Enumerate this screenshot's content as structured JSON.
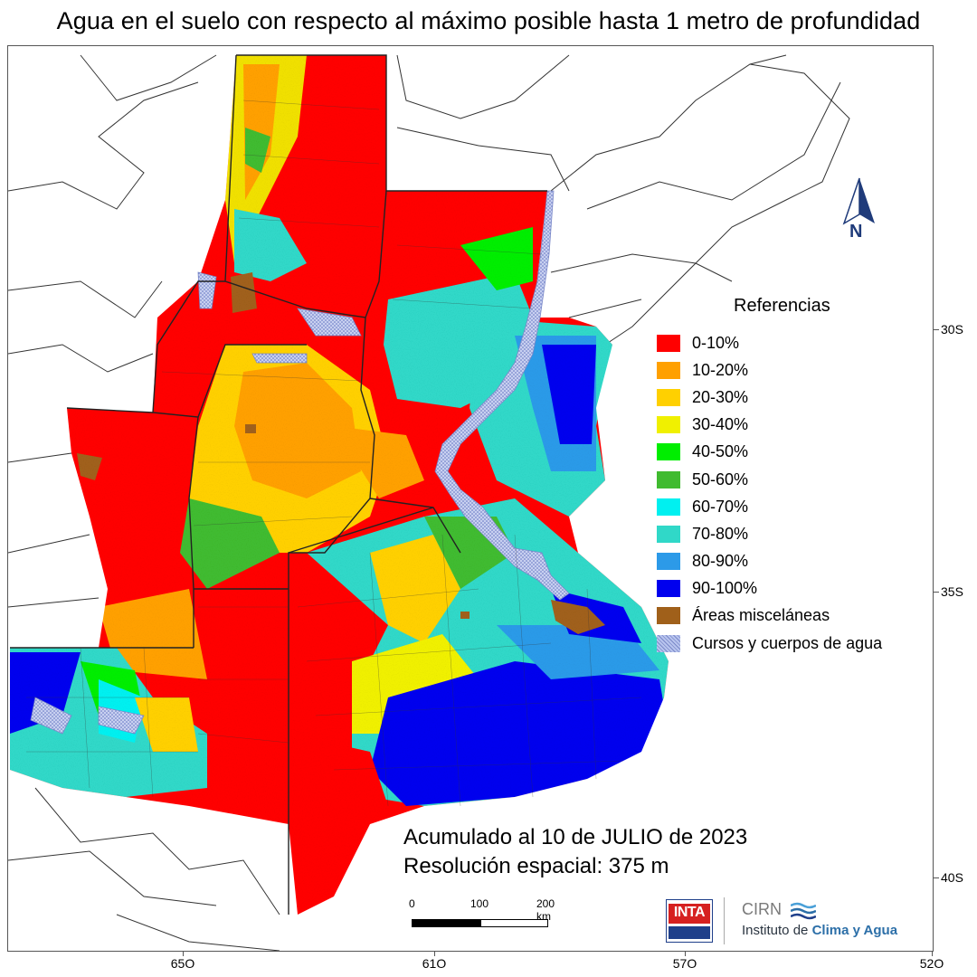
{
  "title": "Agua en el suelo con respecto al máximo posible hasta 1 metro de profundidad",
  "axes": {
    "lat_labels": [
      "30S",
      "35S",
      "40S"
    ],
    "lon_labels": [
      "65O",
      "61O",
      "57O",
      "52O"
    ]
  },
  "legend": {
    "title": "Referencias",
    "items": [
      {
        "label": "0-10%",
        "color": "#ff0000"
      },
      {
        "label": "10-20%",
        "color": "#ffa000"
      },
      {
        "label": "20-30%",
        "color": "#ffd000"
      },
      {
        "label": "30-40%",
        "color": "#f0f000"
      },
      {
        "label": "40-50%",
        "color": "#00ee00"
      },
      {
        "label": "50-60%",
        "color": "#40bb30"
      },
      {
        "label": "60-70%",
        "color": "#00f0f0"
      },
      {
        "label": "70-80%",
        "color": "#30d8c8"
      },
      {
        "label": "80-90%",
        "color": "#2c9ae8"
      },
      {
        "label": "90-100%",
        "color": "#0000ee"
      },
      {
        "label": "Áreas misceláneas",
        "color": "#a0601a"
      },
      {
        "label": "Cursos y cuerpos de agua",
        "color": "#b8c4ee"
      }
    ]
  },
  "north_arrow": {
    "label": "N"
  },
  "info": {
    "line1": "Acumulado al 10 de JULIO de 2023",
    "line2": "Resolución espacial: 375 m"
  },
  "scale": {
    "labels": [
      "0",
      "100",
      "200 km"
    ]
  },
  "logos": {
    "inta": "INTA",
    "cirn": "CIRN",
    "cirn_sub_a": "Instituto de ",
    "cirn_sub_b": "Clima y Agua"
  },
  "colors": {
    "very_dry": "#ff0000",
    "wet": "#0000ee",
    "medium": "#30d8c8",
    "water": "#b8c4ee",
    "boundary": "#222222"
  }
}
